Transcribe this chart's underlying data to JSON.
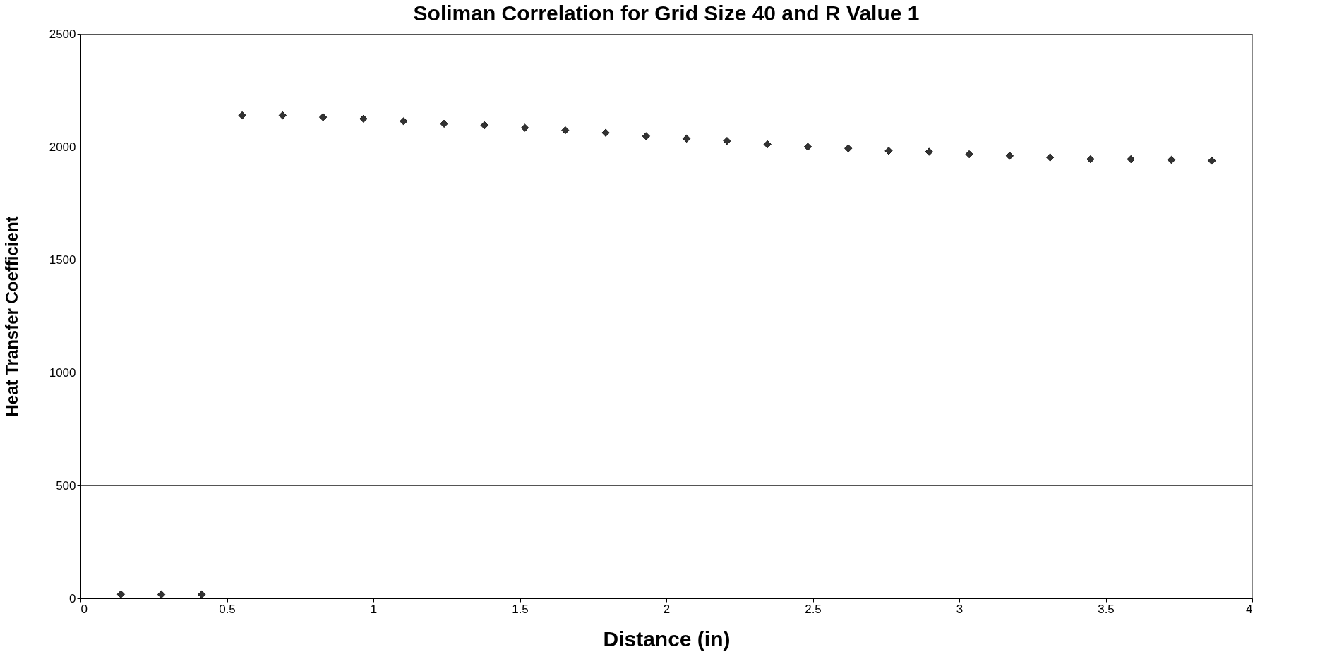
{
  "chart_data": {
    "type": "scatter",
    "title": "Soliman Correlation for Grid Size 40 and R Value 1",
    "xlabel": "Distance (in)",
    "ylabel": "Heat Transfer Coefficient",
    "x": [
      0.138,
      0.276,
      0.414,
      0.552,
      0.69,
      0.828,
      0.966,
      1.103,
      1.241,
      1.379,
      1.517,
      1.655,
      1.793,
      1.931,
      2.069,
      2.207,
      2.345,
      2.483,
      2.621,
      2.759,
      2.897,
      3.034,
      3.172,
      3.31,
      3.448,
      3.586,
      3.724,
      3.862
    ],
    "series": [
      {
        "color": "#333333",
        "values": [
          18,
          17,
          17,
          2139,
          2139,
          2131,
          2124,
          2113,
          2102,
          2095,
          2084,
          2073,
          2062,
          2047,
          2036,
          2026,
          2011,
          2000,
          1993,
          1982,
          1978,
          1967,
          1960,
          1953,
          1945,
          1945,
          1942,
          1938
        ]
      }
    ],
    "xlim": [
      0,
      4
    ],
    "xticks": [
      0,
      0.5,
      1,
      1.5,
      2,
      2.5,
      3,
      3.5,
      4
    ],
    "ylim": [
      0,
      2500
    ],
    "yticks": [
      0,
      500,
      1000,
      1500,
      2000,
      2500
    ],
    "grid": "y",
    "marker": "diamond",
    "legend": false
  }
}
